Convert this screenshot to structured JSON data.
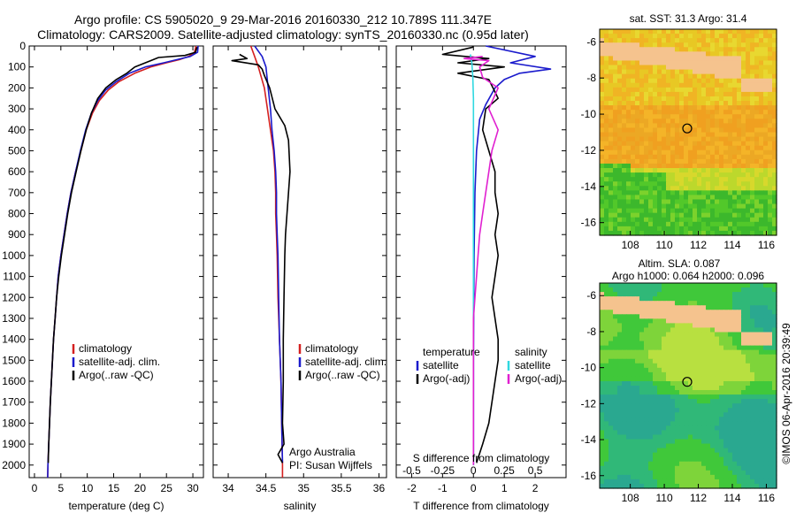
{
  "header": {
    "line1": "Argo profile: CS 5905020_9 29-Mar-2016 20160330_212 10.789S 111.347E",
    "line2": "Climatology: CARS2009. Satellite-adjusted climatology: synTS_20160330.nc (0.95d later)"
  },
  "colors": {
    "climatology": "#d42020",
    "satellite": "#1a1acc",
    "argo": "#000000",
    "salinity_sat": "#30d8e0",
    "salinity_argo": "#e020d0",
    "land": "#f5c38e"
  },
  "chart_data": [
    {
      "type": "line",
      "id": "temperature",
      "xlabel": "temperature (deg C)",
      "ylabel": "",
      "xlim": [
        -1,
        32
      ],
      "ylim": [
        2060,
        0
      ],
      "xticks": [
        "0",
        "5",
        "10",
        "15",
        "20",
        "25",
        "30"
      ],
      "yticks": [
        "0",
        "100",
        "200",
        "300",
        "400",
        "500",
        "600",
        "700",
        "800",
        "900",
        "1000",
        "1100",
        "1200",
        "1300",
        "1400",
        "1500",
        "1600",
        "1700",
        "1800",
        "1900",
        "2000"
      ],
      "legend": [
        "climatology",
        "satellite-adj. clim.",
        "Argo(..raw -QC)"
      ],
      "series": [
        {
          "name": "climatology",
          "color": "#d42020",
          "points": [
            [
              30.6,
              0
            ],
            [
              30.3,
              30
            ],
            [
              29.2,
              50
            ],
            [
              27.5,
              65
            ],
            [
              25.0,
              80
            ],
            [
              22.0,
              100
            ],
            [
              19.0,
              130
            ],
            [
              16.0,
              170
            ],
            [
              14.0,
              210
            ],
            [
              12.3,
              260
            ],
            [
              11.0,
              320
            ],
            [
              9.8,
              400
            ],
            [
              8.8,
              500
            ],
            [
              7.8,
              600
            ],
            [
              6.9,
              700
            ],
            [
              6.2,
              800
            ],
            [
              5.6,
              900
            ],
            [
              5.0,
              1000
            ],
            [
              4.5,
              1100
            ],
            [
              4.2,
              1200
            ],
            [
              3.9,
              1300
            ],
            [
              3.6,
              1400
            ],
            [
              3.4,
              1500
            ],
            [
              3.2,
              1600
            ],
            [
              3.0,
              1700
            ],
            [
              2.85,
              1800
            ],
            [
              2.7,
              1900
            ],
            [
              2.55,
              2000
            ],
            [
              2.5,
              2060
            ]
          ]
        },
        {
          "name": "satellite-adj. clim.",
          "color": "#1a1acc",
          "points": [
            [
              31.0,
              0
            ],
            [
              30.9,
              30
            ],
            [
              29.5,
              50
            ],
            [
              27.0,
              65
            ],
            [
              24.5,
              80
            ],
            [
              21.0,
              100
            ],
            [
              18.0,
              130
            ],
            [
              15.5,
              170
            ],
            [
              13.5,
              210
            ],
            [
              12.0,
              260
            ],
            [
              10.8,
              320
            ],
            [
              9.7,
              400
            ],
            [
              8.7,
              500
            ],
            [
              7.8,
              600
            ],
            [
              6.9,
              700
            ],
            [
              6.2,
              800
            ],
            [
              5.6,
              900
            ],
            [
              5.0,
              1000
            ],
            [
              4.5,
              1100
            ],
            [
              4.2,
              1200
            ],
            [
              3.9,
              1300
            ],
            [
              3.6,
              1400
            ],
            [
              3.4,
              1500
            ],
            [
              3.2,
              1600
            ],
            [
              3.0,
              1700
            ],
            [
              2.85,
              1800
            ],
            [
              2.7,
              1900
            ],
            [
              2.55,
              2000
            ],
            [
              2.5,
              2060
            ]
          ]
        },
        {
          "name": "Argo(..raw -QC)",
          "color": "#000000",
          "points": [
            [
              30.8,
              5
            ],
            [
              30.5,
              30
            ],
            [
              28.5,
              45
            ],
            [
              23.5,
              55
            ],
            [
              22.0,
              70
            ],
            [
              19.0,
              100
            ],
            [
              17.5,
              130
            ],
            [
              15.5,
              160
            ],
            [
              13.5,
              200
            ],
            [
              12.0,
              250
            ],
            [
              10.8,
              320
            ],
            [
              9.8,
              400
            ],
            [
              8.8,
              500
            ],
            [
              7.9,
              600
            ],
            [
              7.0,
              700
            ],
            [
              6.3,
              800
            ],
            [
              5.7,
              900
            ],
            [
              5.1,
              1000
            ],
            [
              4.6,
              1100
            ],
            [
              4.2,
              1200
            ],
            [
              3.9,
              1300
            ],
            [
              3.6,
              1400
            ],
            [
              3.4,
              1500
            ],
            [
              3.2,
              1600
            ],
            [
              3.0,
              1700
            ],
            [
              2.85,
              1800
            ],
            [
              2.7,
              1900
            ],
            [
              2.6,
              1990
            ]
          ]
        }
      ]
    },
    {
      "type": "line",
      "id": "salinity",
      "xlabel": "salinity",
      "ylabel": "",
      "xlim": [
        33.8,
        36.1
      ],
      "ylim": [
        2060,
        0
      ],
      "xticks": [
        "34",
        "34.5",
        "35",
        "35.5",
        "36"
      ],
      "legend": [
        "climatology",
        "satellite-adj. clim.",
        "Argo(..raw -QC)"
      ],
      "annotation": [
        "Argo Australia",
        "PI: Susan Wijffels"
      ],
      "series": [
        {
          "name": "climatology",
          "color": "#d42020",
          "points": [
            [
              34.3,
              0
            ],
            [
              34.35,
              50
            ],
            [
              34.4,
              100
            ],
            [
              34.48,
              200
            ],
            [
              34.52,
              300
            ],
            [
              34.56,
              400
            ],
            [
              34.6,
              500
            ],
            [
              34.62,
              600
            ],
            [
              34.63,
              700
            ],
            [
              34.63,
              800
            ],
            [
              34.64,
              900
            ],
            [
              34.65,
              1000
            ],
            [
              34.66,
              1200
            ],
            [
              34.68,
              1400
            ],
            [
              34.7,
              1600
            ],
            [
              34.71,
              1800
            ],
            [
              34.72,
              2000
            ],
            [
              34.72,
              2060
            ]
          ]
        },
        {
          "name": "satellite-adj. clim.",
          "color": "#1a1acc",
          "points": [
            [
              34.35,
              0
            ],
            [
              34.45,
              50
            ],
            [
              34.5,
              100
            ],
            [
              34.53,
              200
            ],
            [
              34.56,
              300
            ],
            [
              34.58,
              400
            ],
            [
              34.61,
              500
            ],
            [
              34.63,
              600
            ],
            [
              34.64,
              700
            ],
            [
              34.64,
              800
            ],
            [
              34.65,
              900
            ],
            [
              34.66,
              1000
            ],
            [
              34.67,
              1200
            ],
            [
              34.68,
              1400
            ],
            [
              34.7,
              1600
            ],
            [
              34.71,
              1800
            ],
            [
              34.72,
              1990
            ]
          ]
        },
        {
          "name": "Argo(..raw -QC)",
          "color": "#000000",
          "points": [
            [
              34.15,
              40
            ],
            [
              34.25,
              60
            ],
            [
              34.05,
              70
            ],
            [
              34.4,
              90
            ],
            [
              34.45,
              110
            ],
            [
              34.48,
              140
            ],
            [
              34.55,
              200
            ],
            [
              34.62,
              300
            ],
            [
              34.75,
              380
            ],
            [
              34.8,
              450
            ],
            [
              34.82,
              600
            ],
            [
              34.8,
              700
            ],
            [
              34.78,
              800
            ],
            [
              34.76,
              900
            ],
            [
              34.75,
              1000
            ],
            [
              34.74,
              1200
            ],
            [
              34.73,
              1400
            ],
            [
              34.73,
              1600
            ],
            [
              34.72,
              1800
            ],
            [
              34.74,
              1900
            ],
            [
              34.66,
              1950
            ],
            [
              34.72,
              1990
            ]
          ]
        }
      ]
    },
    {
      "type": "line",
      "id": "differences",
      "xlabel": "T difference from climatology",
      "xlabel_top": "S difference from climatology",
      "xlim": [
        -2.5,
        3.0
      ],
      "ylim": [
        2060,
        0
      ],
      "xticks": [
        "-2",
        "-1",
        "0",
        "1",
        "2"
      ],
      "xticks_top": [
        "-0.5",
        "-0.25",
        "0",
        "0.25",
        "0.5"
      ],
      "legend_left_title": "temperature",
      "legend_right_title": "salinity",
      "legend_left": [
        "satellite",
        "Argo(-adj)"
      ],
      "legend_right": [
        "satellite",
        "Argo(-adj)"
      ],
      "series": [
        {
          "name": "temperature satellite",
          "color": "#1a1acc",
          "points": [
            [
              0.4,
              0
            ],
            [
              2.0,
              50
            ],
            [
              1.2,
              80
            ],
            [
              2.5,
              110
            ],
            [
              1.5,
              130
            ],
            [
              1.0,
              160
            ],
            [
              0.7,
              200
            ],
            [
              0.4,
              280
            ],
            [
              0.2,
              350
            ],
            [
              0.1,
              500
            ],
            [
              0.05,
              700
            ],
            [
              0.02,
              1000
            ],
            [
              0.0,
              1500
            ],
            [
              0.0,
              2000
            ]
          ]
        },
        {
          "name": "temperature Argo(-adj)",
          "color": "#000000",
          "points": [
            [
              0.0,
              5
            ],
            [
              -1.0,
              40
            ],
            [
              0.5,
              60
            ],
            [
              -0.5,
              80
            ],
            [
              1.0,
              100
            ],
            [
              -0.5,
              130
            ],
            [
              0.5,
              160
            ],
            [
              0.8,
              250
            ],
            [
              0.4,
              300
            ],
            [
              0.3,
              400
            ],
            [
              0.5,
              500
            ],
            [
              0.7,
              600
            ],
            [
              0.7,
              700
            ],
            [
              0.8,
              800
            ],
            [
              0.7,
              900
            ],
            [
              0.8,
              1000
            ],
            [
              0.7,
              1100
            ],
            [
              0.6,
              1200
            ],
            [
              0.7,
              1300
            ],
            [
              0.8,
              1400
            ],
            [
              0.8,
              1500
            ],
            [
              0.7,
              1600
            ],
            [
              0.6,
              1700
            ],
            [
              0.5,
              1800
            ],
            [
              0.3,
              1900
            ],
            [
              0.1,
              1990
            ]
          ]
        },
        {
          "name": "salinity satellite",
          "color": "#30d8e0",
          "points": [
            [
              -0.1,
              40
            ],
            [
              -0.05,
              80
            ],
            [
              -0.02,
              150
            ],
            [
              0.0,
              250
            ],
            [
              0.0,
              400
            ],
            [
              0.0,
              700
            ],
            [
              0.0,
              1000
            ],
            [
              0.0,
              1500
            ],
            [
              0.0,
              2000
            ]
          ]
        },
        {
          "name": "salinity Argo(-adj)",
          "color": "#e020d0",
          "points": [
            [
              0.3,
              50
            ],
            [
              -0.3,
              60
            ],
            [
              0.5,
              70
            ],
            [
              0.2,
              100
            ],
            [
              0.3,
              150
            ],
            [
              0.8,
              200
            ],
            [
              0.5,
              300
            ],
            [
              0.8,
              400
            ],
            [
              0.6,
              500
            ],
            [
              0.5,
              600
            ],
            [
              0.4,
              700
            ],
            [
              0.3,
              800
            ],
            [
              0.2,
              900
            ],
            [
              0.15,
              1000
            ],
            [
              0.1,
              1100
            ],
            [
              0.05,
              1200
            ],
            [
              0.0,
              1300
            ],
            [
              0.0,
              1500
            ],
            [
              0.0,
              2000
            ]
          ]
        }
      ]
    },
    {
      "type": "heatmap",
      "id": "sst-map",
      "title": "sat. SST: 31.3 Argo: 31.4",
      "xlim": [
        106.2,
        116.6
      ],
      "ylim": [
        -16.7,
        -5.3
      ],
      "xticks": [
        "108",
        "110",
        "112",
        "114",
        "116"
      ],
      "yticks": [
        "-6",
        "-8",
        "-10",
        "-12",
        "-14",
        "-16"
      ],
      "marker": {
        "lon": 111.347,
        "lat": -10.789
      }
    },
    {
      "type": "heatmap",
      "id": "sla-map",
      "title": "Altim. SLA: 0.087",
      "subtitle": "Argo h1000: 0.064 h2000: 0.096",
      "xlim": [
        106.2,
        116.6
      ],
      "ylim": [
        -16.7,
        -5.3
      ],
      "xticks": [
        "108",
        "110",
        "112",
        "114",
        "116"
      ],
      "yticks": [
        "-6",
        "-8",
        "-10",
        "-12",
        "-14",
        "-16"
      ],
      "marker": {
        "lon": 111.347,
        "lat": -10.789
      }
    }
  ],
  "footer": {
    "credit": "©IMOS 06-Apr-2016 20:39:49"
  }
}
